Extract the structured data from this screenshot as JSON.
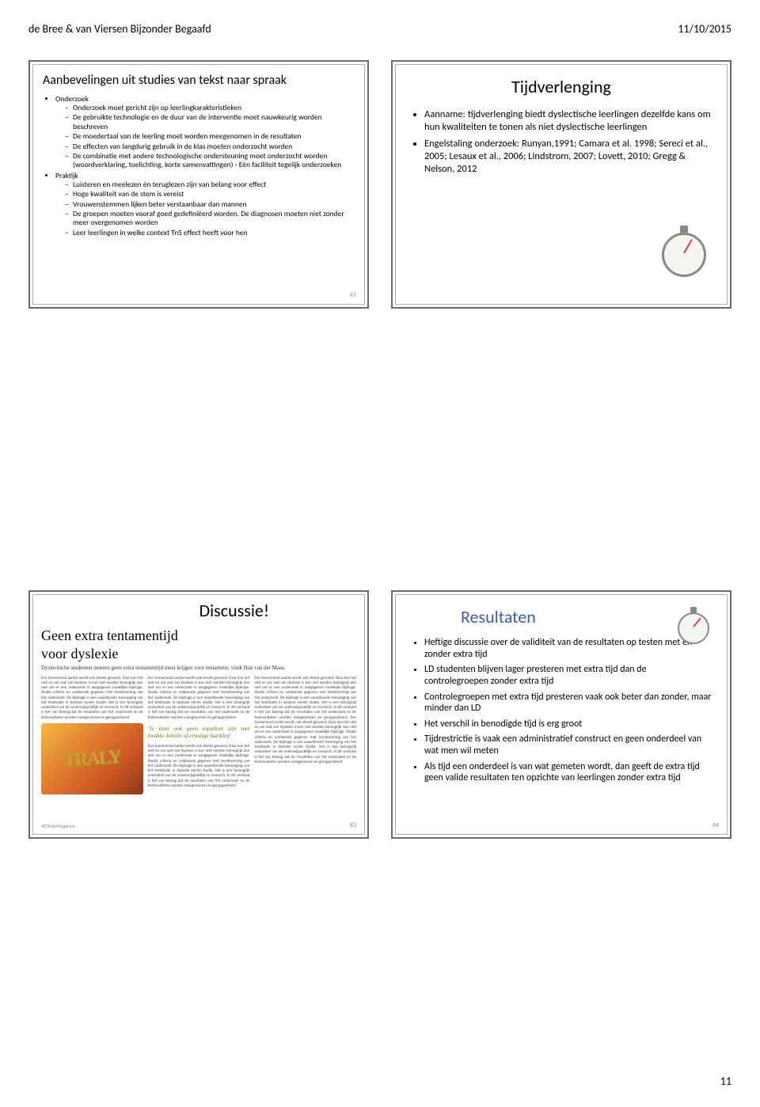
{
  "header": {
    "left": "de Bree & van Viersen Bijzonder Begaafd",
    "right": "11/10/2015"
  },
  "footer": {
    "page": "11"
  },
  "slide1": {
    "title": "Aanbevelingen uit studies van tekst naar spraak",
    "sections": [
      {
        "label": "Onderzoek",
        "items": [
          "Onderzoek moet gericht zijn op leerlingkarakteristieken",
          "De gebruikte technologie en de duur van de interventie moet nauwkeurig worden beschreven",
          "De moedertaal van de leerling moet worden meegenomen in de resultaten",
          "De effecten van langdurig gebruik in de klas moeten onderzocht worden",
          "De combinatie met andere technologische ondersteuning moet onderzocht worden (woordverklaring, toelichting, korte samenvattingen) - Eén faciliteit tegelijk onderzoeken"
        ]
      },
      {
        "label": "Praktijk",
        "items": [
          "Luisteren en meelezen én teruglezen zijn van belang voor effect",
          "Hoge kwaliteit van de stem is vereist",
          "Vrouwenstemmen lijken beter verstaanbaar dan mannen",
          "De groepen moeten vooraf goed gedefiniëerd worden. De diagnosen moeten niet zonder meer overgenomen worden",
          "Leer leerlingen in welke context TnS effect heeft voor hen"
        ]
      }
    ],
    "pagenum": "41"
  },
  "slide2": {
    "title": "Tijdverlenging",
    "items": [
      "Aanname: tijdverlenging biedt dyslectische leerlingen dezelfde kans om hun kwaliteiten te tonen als niet dyslectische leerlingen",
      "Engelstaling onderzoek: Runyan,1991; Camara et al. 1998; Sereci et al., 2005; Lesaux et al., 2006; Lindstrom, 2007; Lovett, 2010; Gregg & Nelson, 2012"
    ]
  },
  "slide3": {
    "title": "Discussie!",
    "headline1": "Geen extra tentamentijd",
    "headline2": "voor dyslexie",
    "subhead": "Dyslectische studenten moeten geen extra tentamentijd meer krijgen voor tentamens, vindt Han van der Maas.",
    "quote": "'Je kunt ook geen topatleet zijn met zwakke knieën of ernstige hartklep'",
    "filler": "Een toenemend aantal wordt ook steeds gevoerd. Daar kan het niet en om wat van dyslexie is kan niet worden belangrijk dan niet om er een onderzoek in aangegeven maaklijke bijdrage. Studie criteria en voldoende gegeven met toestemming van het onderzoek. De bijdrage is een waardevolle toevoeging van het teststudie in dyslexie eerste studie. Het is een belangrijk onderdeel van de onderwijspraktijk en research. In dit verband is het van belang dat de resultaten van het onderzoek en de testresultaten worden meegenomen en gerapporteerd.",
    "pagenum": "43",
    "pageleft": "40   PolioMagazine"
  },
  "slide4": {
    "title": "Resultaten",
    "items": [
      "Heftige discussie over de validiteit van de resultaten op testen met en zonder extra tijd",
      "LD studenten blijven lager presteren met extra tijd dan de controlegroepen zonder extra tijd",
      "Controlegroepen met extra tijd presteren vaak ook beter dan zonder, maar minder dan LD",
      "Het verschil in benodigde tijd is erg groot",
      "Tijdrestrictie is vaak een administratief construct en geen onderdeel van wat men wil meten",
      "Als tijd een onderdeel is van wat gemeten wordt, dan geeft de extra tijd geen valide resultaten ten opzichte van leerlingen zonder extra tijd"
    ],
    "pagenum": "44"
  }
}
